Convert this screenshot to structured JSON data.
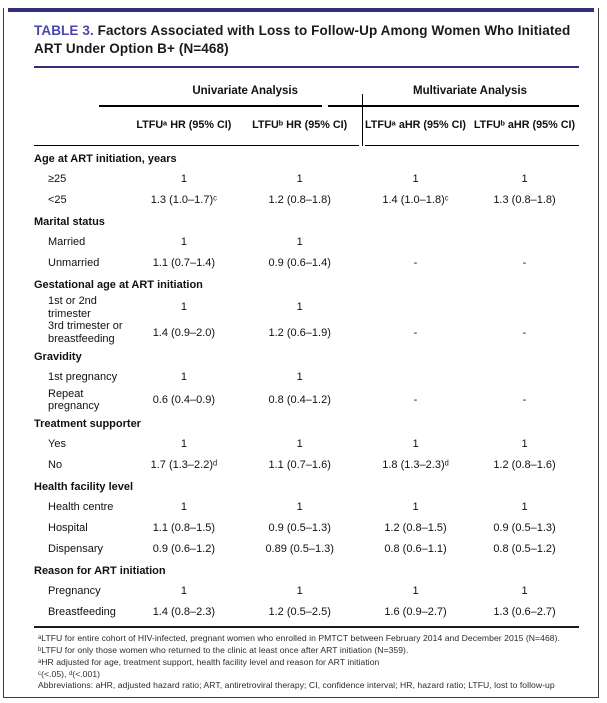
{
  "accent": {
    "bar_color": "#322f78",
    "table_label_color": "#4a47a8"
  },
  "title": {
    "label": "TABLE 3.",
    "text": " Factors Associated with Loss to Follow-Up Among Women Who Initiated ART Under Option B+ (N=468)"
  },
  "header": {
    "groups": [
      {
        "label": "Univariate Analysis"
      },
      {
        "label": "Multivariate Analysis"
      }
    ],
    "columns": [
      "LTFUᵃ HR (95% CI)",
      "LTFUᵇ HR (95% CI)",
      "LTFUᵃ aHR (95% CI)",
      "LTFUᵇ aHR (95% CI)"
    ]
  },
  "rows": [
    {
      "type": "category",
      "label": "Age at ART initiation, years"
    },
    {
      "type": "data",
      "label": "≥25",
      "values": [
        "1",
        "1",
        "1",
        "1"
      ]
    },
    {
      "type": "data",
      "label": "<25",
      "values": [
        "1.3 (1.0–1.7)ᶜ",
        "1.2 (0.8–1.8)",
        "1.4 (1.0–1.8)ᶜ",
        "1.3 (0.8–1.8)"
      ]
    },
    {
      "type": "category",
      "label": "Marital status"
    },
    {
      "type": "data",
      "label": "Married",
      "values": [
        "1",
        "1",
        "",
        ""
      ]
    },
    {
      "type": "data",
      "label": "Unmarried",
      "values": [
        "1.1 (0.7–1.4)",
        "0.9 (0.6–1.4)",
        "-",
        "-"
      ]
    },
    {
      "type": "category",
      "label": "Gestational age at ART initiation"
    },
    {
      "type": "data",
      "label": "1st or 2nd trimester",
      "values": [
        "1",
        "1",
        "",
        ""
      ]
    },
    {
      "type": "data",
      "label": "3rd trimester or breastfeeding",
      "values": [
        "1.4 (0.9–2.0)",
        "1.2 (0.6–1.9)",
        "-",
        "-"
      ]
    },
    {
      "type": "category",
      "label": "Gravidity"
    },
    {
      "type": "data",
      "label": "1st pregnancy",
      "values": [
        "1",
        "1",
        "",
        ""
      ]
    },
    {
      "type": "data",
      "label": "Repeat pregnancy",
      "values": [
        "0.6 (0.4–0.9)",
        "0.8 (0.4–1.2)",
        "-",
        "-"
      ]
    },
    {
      "type": "category",
      "label": "Treatment supporter"
    },
    {
      "type": "data",
      "label": "Yes",
      "values": [
        "1",
        "1",
        "1",
        "1"
      ]
    },
    {
      "type": "data",
      "label": "No",
      "values": [
        "1.7 (1.3–2.2)ᵈ",
        "1.1 (0.7–1.6)",
        "1.8 (1.3–2.3)ᵈ",
        "1.2 (0.8–1.6)"
      ]
    },
    {
      "type": "category",
      "label": "Health facility level"
    },
    {
      "type": "data",
      "label": "Health centre",
      "values": [
        "1",
        "1",
        "1",
        "1"
      ]
    },
    {
      "type": "data",
      "label": "Hospital",
      "values": [
        "1.1 (0.8–1.5)",
        "0.9 (0.5–1.3)",
        "1.2 (0.8–1.5)",
        "0.9 (0.5–1.3)"
      ]
    },
    {
      "type": "data",
      "label": "Dispensary",
      "values": [
        "0.9 (0.6–1.2)",
        "0.89 (0.5–1.3)",
        "0.8 (0.6–1.1)",
        "0.8 (0.5–1.2)"
      ]
    },
    {
      "type": "category",
      "label": "Reason for ART initiation"
    },
    {
      "type": "data",
      "label": "Pregnancy",
      "values": [
        "1",
        "1",
        "1",
        "1"
      ]
    },
    {
      "type": "data",
      "label": "Breastfeeding",
      "values": [
        "1.4 (0.8–2.3)",
        "1.2 (0.5–2.5)",
        "1.6 (0.9–2.7)",
        "1.3 (0.6–2.7)"
      ]
    }
  ],
  "footnotes": [
    "ᵃLTFU for entire cohort of HIV-infected, pregnant women who enrolled in PMTCT between February 2014 and December 2015 (N=468).",
    "ᵇLTFU for only those women who returned to the clinic at least once after ART initiation (N=359).",
    "ᵃHR adjusted for age, treatment support, health facility level and reason for ART initiation",
    "ᶜ(<.05), ᵈ(<.001)",
    "Abbreviations: aHR, adjusted hazard ratio; ART, antiretroviral therapy; CI, confidence interval; HR, hazard ratio; LTFU, lost to follow-up"
  ]
}
